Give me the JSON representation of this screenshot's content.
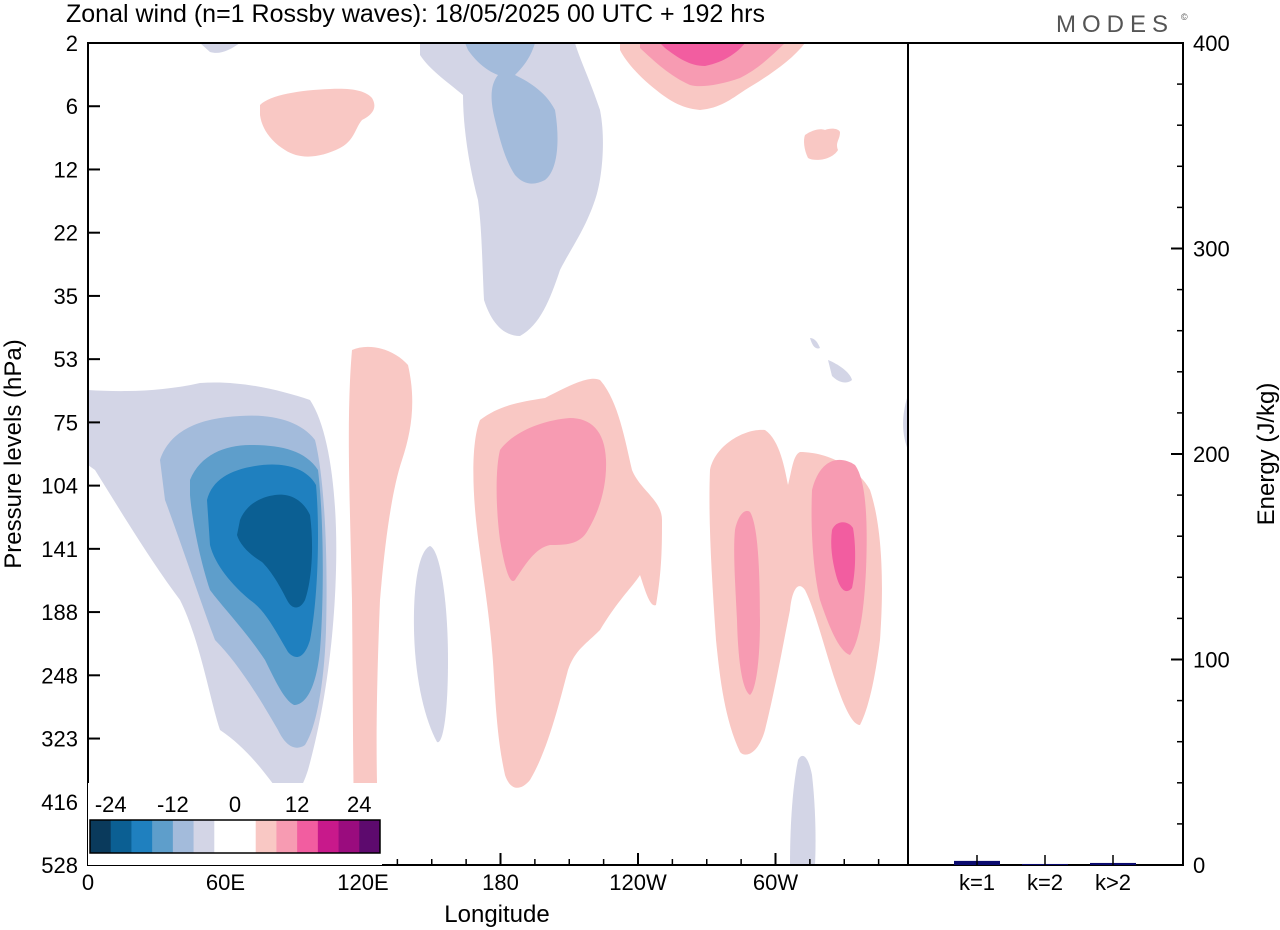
{
  "title": "Zonal wind (n=1 Rossby waves):  18/05/2025  00 UTC  + 192 hrs",
  "brand": "MODES",
  "brand_mark": "©",
  "chart_data": [
    {
      "type": "heatmap",
      "xlabel": "Longitude",
      "ylabel": "Pressure levels (hPa)",
      "x_ticks": [
        "0",
        "60E",
        "120E",
        "180",
        "120W",
        "60W"
      ],
      "y_ticks": [
        "2",
        "6",
        "12",
        "22",
        "35",
        "53",
        "75",
        "104",
        "141",
        "188",
        "248",
        "323",
        "416",
        "528"
      ],
      "colorbar": {
        "labels": [
          "-24",
          "-12",
          "0",
          "12",
          "24"
        ],
        "colors": [
          "#0a3a5c",
          "#0b5f93",
          "#1f80bf",
          "#5e9ecb",
          "#a3bbdb",
          "#d3d5e6",
          "#ffffff",
          "#ffffff",
          "#f9c8c4",
          "#f79bb2",
          "#f25da0",
          "#c8198b",
          "#9a0c7e",
          "#5d0a6e"
        ]
      },
      "features": [
        {
          "name": "negative anomaly",
          "lon_range": [
            "0",
            "120E"
          ],
          "level_range": [
            "53",
            "416"
          ],
          "min": -24
        },
        {
          "name": "negative anomaly",
          "lon_range": [
            "180",
            "120W"
          ],
          "level_range": [
            "2",
            "35"
          ],
          "min": -12
        },
        {
          "name": "positive anomaly",
          "lon_range": [
            "180",
            "120W"
          ],
          "level_range": [
            "53",
            "416"
          ],
          "max": 12
        },
        {
          "name": "positive anomaly",
          "lon_range": [
            "120W",
            "60W"
          ],
          "level_range": [
            "2",
            "6"
          ],
          "max": 18
        },
        {
          "name": "positive anomaly",
          "lon_range": [
            "60W",
            "0"
          ],
          "level_range": [
            "75",
            "323"
          ],
          "max": 18
        }
      ]
    },
    {
      "type": "bar",
      "ylabel": "Energy (J/kg)",
      "categories": [
        "k=1",
        "k=2",
        "k>2"
      ],
      "values": [
        2,
        0.5,
        1
      ],
      "ylim": [
        0,
        400
      ],
      "y_ticks": [
        "0",
        "100",
        "200",
        "300",
        "400"
      ],
      "bar_color": "#0a0a6e"
    }
  ]
}
